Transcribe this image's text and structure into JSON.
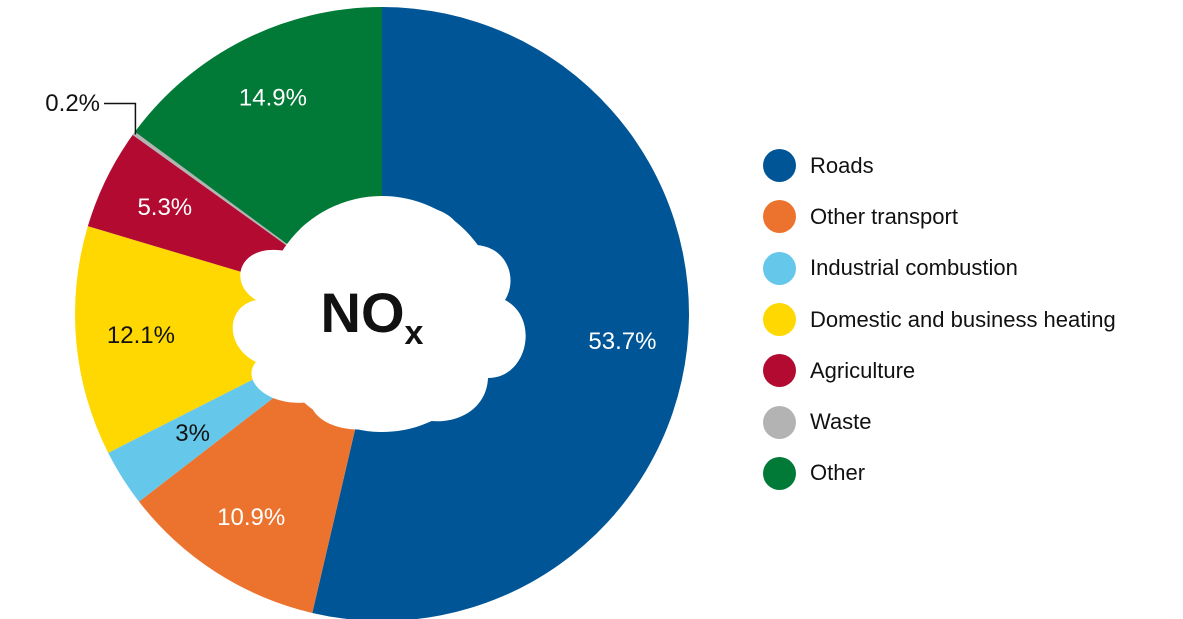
{
  "chart_data": {
    "type": "pie",
    "variant": "donut",
    "center_text": {
      "main": "NO",
      "subscript": "x"
    },
    "slices": [
      {
        "name": "Roads",
        "value": 53.7,
        "label": "53.7%",
        "color": "#005596",
        "label_color": "#ffffff"
      },
      {
        "name": "Other transport",
        "value": 10.9,
        "label": "10.9%",
        "color": "#ec732d",
        "label_color": "#ffffff"
      },
      {
        "name": "Industrial combustion",
        "value": 3.0,
        "label": "3%",
        "color": "#65c7ea",
        "label_color": "#111111"
      },
      {
        "name": "Domestic and business heating",
        "value": 12.1,
        "label": "12.1%",
        "color": "#fed800",
        "label_color": "#111111"
      },
      {
        "name": "Agriculture",
        "value": 5.3,
        "label": "5.3%",
        "color": "#b20a30",
        "label_color": "#ffffff"
      },
      {
        "name": "Waste",
        "value": 0.2,
        "label": "0.2%",
        "color": "#b3b3b3",
        "label_color": "#111111",
        "callout": true
      },
      {
        "name": "Other",
        "value": 14.9,
        "label": "14.9%",
        "color": "#007a36",
        "label_color": "#ffffff"
      }
    ],
    "start": "12 o'clock",
    "direction": "clockwise",
    "legend_position": "right"
  }
}
